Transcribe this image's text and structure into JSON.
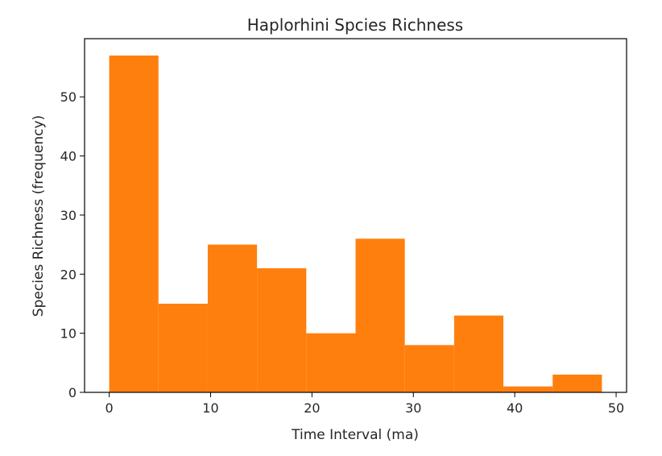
{
  "chart_data": {
    "type": "bar",
    "title": "Haplorhini Spcies Richness",
    "xlabel": "Time Interval (ma)",
    "ylabel": "Species Richness (frequency)",
    "bin_edges": [
      0,
      4.86,
      9.72,
      14.58,
      19.44,
      24.3,
      29.16,
      34.02,
      38.88,
      43.74,
      48.6
    ],
    "values": [
      57,
      15,
      25,
      21,
      10,
      26,
      8,
      13,
      1,
      3
    ],
    "xlim": [
      -2.43,
      51.03
    ],
    "ylim": [
      0,
      59.85
    ],
    "xticks": [
      0,
      10,
      20,
      30,
      40,
      50
    ],
    "yticks": [
      0,
      10,
      20,
      30,
      40,
      50
    ],
    "bar_color": "#ff7f0e",
    "grid": false
  }
}
